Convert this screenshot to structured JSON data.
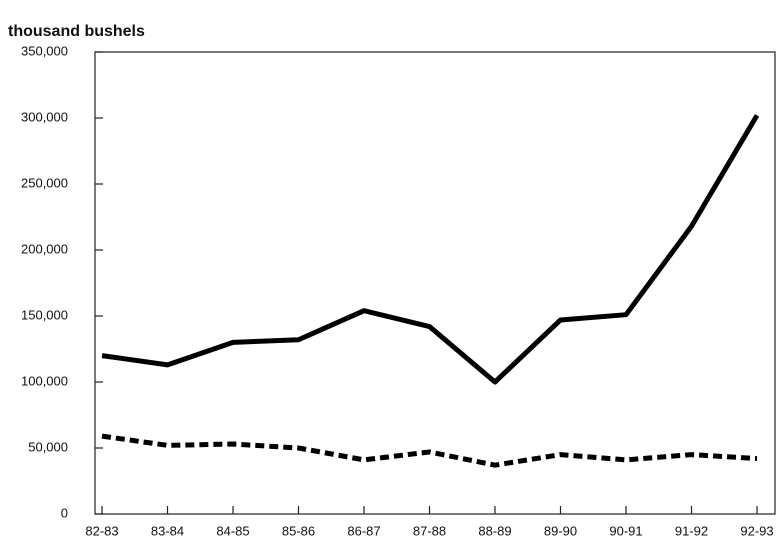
{
  "chart_data": {
    "type": "line",
    "y_label": "thousand bushels",
    "categories": [
      "82-83",
      "83-84",
      "84-85",
      "85-86",
      "86-87",
      "87-88",
      "88-89",
      "89-90",
      "90-91",
      "91-92",
      "92-93"
    ],
    "series": [
      {
        "color": "#000000",
        "dashed": false,
        "values": [
          120000,
          113000,
          130000,
          132000,
          154000,
          142000,
          100000,
          147000,
          151000,
          218000,
          302000
        ]
      },
      {
        "color": "#000000",
        "dashed": true,
        "values": [
          59000,
          52000,
          53000,
          50000,
          41000,
          47000,
          37000,
          45000,
          41000,
          45000,
          42000
        ]
      }
    ],
    "ylim": [
      0,
      350000
    ],
    "yticks": [
      0,
      {
        "value": 50000,
        "label": "50,000"
      },
      {
        "value": 100000,
        "label": "100,000"
      },
      {
        "value": 150000,
        "label": "150,000"
      },
      {
        "value": 200000,
        "label": "200,000"
      },
      {
        "value": 250000,
        "label": "250,000"
      },
      {
        "value": 300000,
        "label": "300,000"
      },
      {
        "value": 350000,
        "label": "350,000"
      }
    ],
    "grid": false
  }
}
